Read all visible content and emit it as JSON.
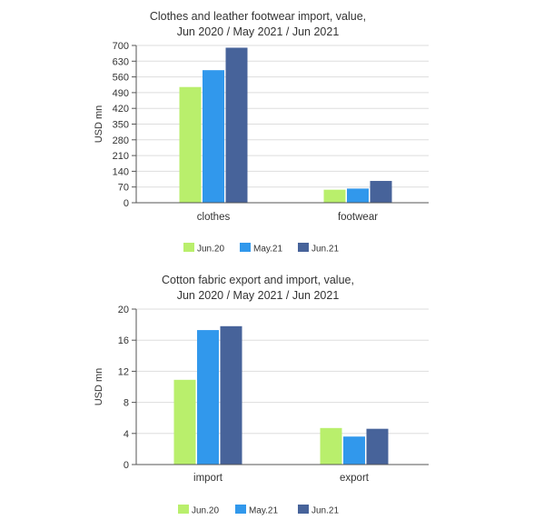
{
  "chart_data": [
    {
      "type": "bar",
      "title_lines": [
        "Clothes and leather footwear import, value,",
        "Jun 2020 / May 2021 / Jun  2021"
      ],
      "xlabel": "",
      "ylabel": "USD mn",
      "categories": [
        "clothes",
        "footwear"
      ],
      "series": [
        {
          "name": "Jun.20",
          "values": [
            515,
            58
          ]
        },
        {
          "name": "May.21",
          "values": [
            590,
            63
          ]
        },
        {
          "name": "Jun.21",
          "values": [
            690,
            97
          ]
        }
      ],
      "ylim": [
        0,
        700
      ],
      "yticks": [
        0,
        70,
        140,
        210,
        280,
        350,
        420,
        490,
        560,
        630,
        700
      ],
      "grid": true,
      "legend": "bottom-center"
    },
    {
      "type": "bar",
      "title_lines": [
        "Cotton fabric export and import, value,",
        "Jun 2020 / May 2021 / Jun 2021"
      ],
      "xlabel": "",
      "ylabel": "USD mn",
      "categories": [
        "import",
        "export"
      ],
      "series": [
        {
          "name": "Jun.20",
          "values": [
            10.9,
            4.7
          ]
        },
        {
          "name": "May.21",
          "values": [
            17.3,
            3.6
          ]
        },
        {
          "name": "Jun.21",
          "values": [
            17.8,
            4.6
          ]
        }
      ],
      "ylim": [
        0,
        20
      ],
      "yticks": [
        0,
        4,
        8,
        12,
        16,
        20
      ],
      "grid": true,
      "legend": "bottom-center"
    }
  ],
  "colors": {
    "Jun.20": "#b9ef6c",
    "May.21": "#3198ec",
    "Jun.21": "#47639a",
    "grid": "#dddddd",
    "axis": "#555555"
  }
}
